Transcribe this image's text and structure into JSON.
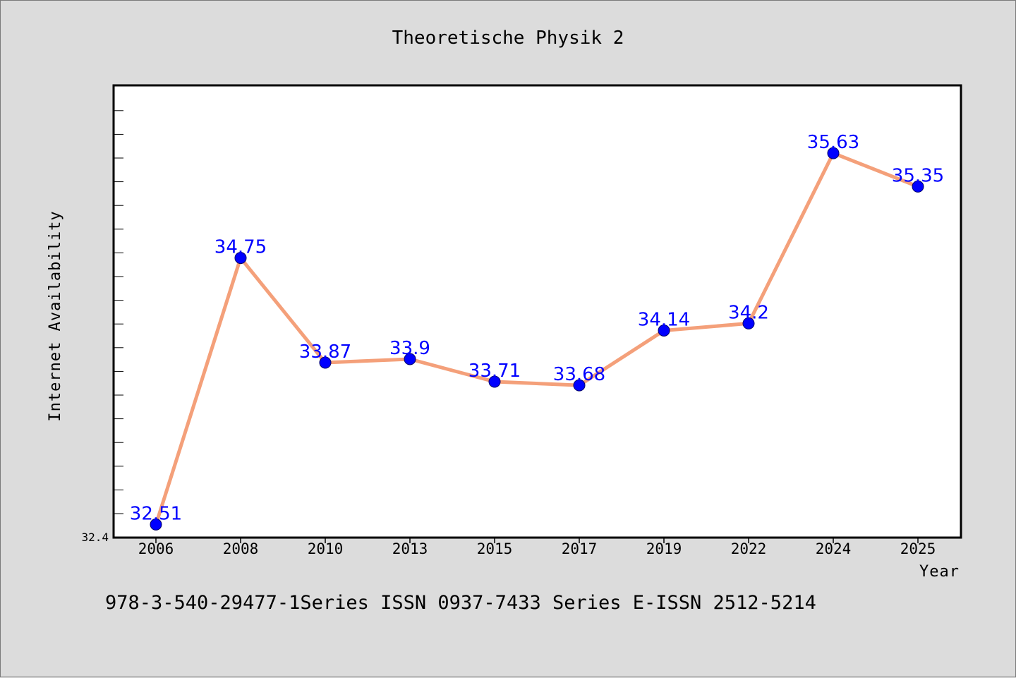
{
  "chart_data": {
    "type": "line",
    "title": "Theoretische Physik 2",
    "xlabel": "Year",
    "ylabel": "Internet Availability",
    "categories": [
      "2006",
      "2008",
      "2010",
      "2013",
      "2015",
      "2017",
      "2019",
      "2022",
      "2024",
      "2025"
    ],
    "values": [
      32.51,
      34.75,
      33.87,
      33.9,
      33.71,
      33.68,
      34.14,
      34.2,
      35.63,
      35.35
    ],
    "data_labels": [
      "32.51",
      "34.75",
      "33.87",
      "33.9",
      "33.71",
      "33.68",
      "34.14",
      "34.2",
      "35.63",
      "35.35"
    ],
    "ylim": [
      32.4,
      36.2
    ],
    "y_tick_label": "32.4",
    "grid": false,
    "legend": "none",
    "line_color": "#f4a07a",
    "marker_color": "#0000ff",
    "label_color": "#0000ff"
  },
  "footer": {
    "text": "978-3-540-29477-1Series ISSN 0937-7433 Series E-ISSN 2512-5214"
  }
}
